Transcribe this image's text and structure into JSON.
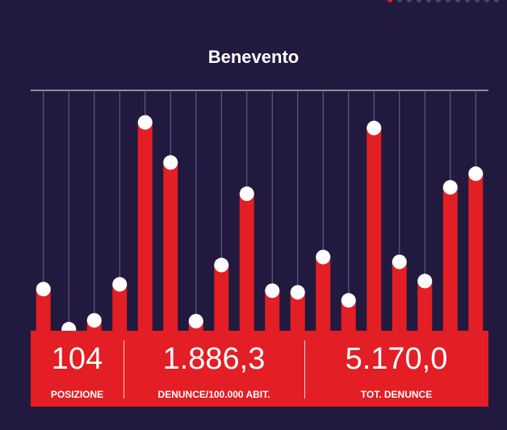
{
  "title": "Benevento",
  "pager": {
    "count": 12,
    "active_index": 0
  },
  "colors": {
    "background": "#211a3e",
    "accent": "#e31e24",
    "marker": "#ffffff",
    "grid": "#6a6494"
  },
  "chart_data": {
    "type": "bar",
    "values": [
      52,
      2,
      13,
      58,
      260,
      210,
      12,
      82,
      171,
      50,
      48,
      92,
      38,
      253,
      86,
      62,
      179,
      196
    ],
    "ylim": [
      0,
      300
    ]
  },
  "stats": [
    {
      "value": "104",
      "label": "POSIZIONE"
    },
    {
      "value": "1.886,3",
      "label": "DENUNCE/100.000 ABIT."
    },
    {
      "value": "5.170,0",
      "label": "TOT. DENUNCE"
    }
  ]
}
